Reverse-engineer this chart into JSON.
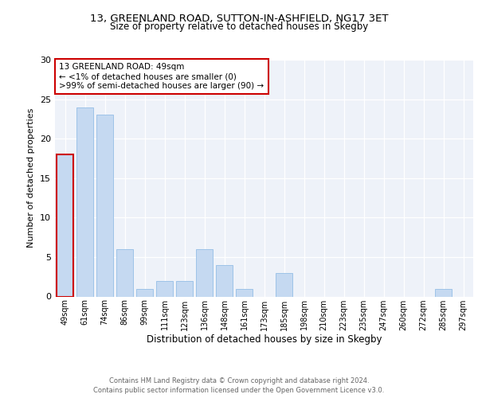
{
  "title1": "13, GREENLAND ROAD, SUTTON-IN-ASHFIELD, NG17 3ET",
  "title2": "Size of property relative to detached houses in Skegby",
  "xlabel": "Distribution of detached houses by size in Skegby",
  "ylabel": "Number of detached properties",
  "categories": [
    "49sqm",
    "61sqm",
    "74sqm",
    "86sqm",
    "99sqm",
    "111sqm",
    "123sqm",
    "136sqm",
    "148sqm",
    "161sqm",
    "173sqm",
    "185sqm",
    "198sqm",
    "210sqm",
    "223sqm",
    "235sqm",
    "247sqm",
    "260sqm",
    "272sqm",
    "285sqm",
    "297sqm"
  ],
  "values": [
    18,
    24,
    23,
    6,
    1,
    2,
    2,
    6,
    4,
    1,
    0,
    3,
    0,
    0,
    0,
    0,
    0,
    0,
    0,
    1,
    0
  ],
  "bar_color": "#c5d9f1",
  "bar_edge_color": "#9ec3e8",
  "highlight_index": 0,
  "highlight_edge_color": "#cc0000",
  "annotation_box_color": "#ffffff",
  "annotation_box_edge": "#cc0000",
  "annotation_title": "13 GREENLAND ROAD: 49sqm",
  "annotation_line2": "← <1% of detached houses are smaller (0)",
  "annotation_line3": ">99% of semi-detached houses are larger (90) →",
  "ylim": [
    0,
    30
  ],
  "yticks": [
    0,
    5,
    10,
    15,
    20,
    25,
    30
  ],
  "plot_bg_color": "#eef2f9",
  "footer1": "Contains HM Land Registry data © Crown copyright and database right 2024.",
  "footer2": "Contains public sector information licensed under the Open Government Licence v3.0."
}
